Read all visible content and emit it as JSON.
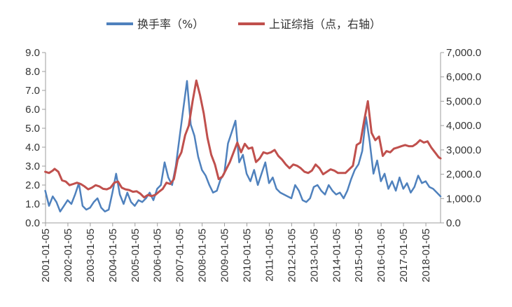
{
  "chart_data": {
    "type": "line",
    "title": "",
    "xlabel": "",
    "ylabel": "",
    "x_ticks": [
      "2001-01-05",
      "2002-01-05",
      "2003-01-05",
      "2004-01-05",
      "2005-01-05",
      "2006-01-05",
      "2007-01-05",
      "2008-01-05",
      "2009-01-05",
      "2010-01-05",
      "2011-01-05",
      "2012-01-05",
      "2013-01-05",
      "2014-01-05",
      "2015-01-05",
      "2016-01-05",
      "2017-01-05",
      "2018-01-05"
    ],
    "xlim": [
      "2001-01-05",
      "2018-09-01"
    ],
    "y_left": {
      "ylim": [
        0,
        9
      ],
      "ticks": [
        "0.0",
        "1.0",
        "2.0",
        "3.0",
        "4.0",
        "5.0",
        "6.0",
        "7.0",
        "8.0",
        "9.0"
      ]
    },
    "y_right": {
      "ylim": [
        0,
        7000
      ],
      "ticks": [
        "0.0",
        "1,000.0",
        "2,000.0",
        "3,000.0",
        "4,000.0",
        "5,000.0",
        "6,000.0",
        "7,000.0"
      ]
    },
    "legend_position": "top-center",
    "grid": false,
    "series": [
      {
        "name": "换手率（%）",
        "axis": "left",
        "color": "#4f81bd",
        "points": [
          [
            "2001-01",
            1.7
          ],
          [
            "2001-03",
            0.9
          ],
          [
            "2001-05",
            1.4
          ],
          [
            "2001-07",
            1.1
          ],
          [
            "2001-09",
            0.6
          ],
          [
            "2001-11",
            0.9
          ],
          [
            "2002-01",
            1.2
          ],
          [
            "2002-03",
            1.0
          ],
          [
            "2002-05",
            1.5
          ],
          [
            "2002-07",
            2.1
          ],
          [
            "2002-09",
            0.9
          ],
          [
            "2002-11",
            0.7
          ],
          [
            "2003-01",
            0.8
          ],
          [
            "2003-03",
            1.1
          ],
          [
            "2003-05",
            1.3
          ],
          [
            "2003-07",
            0.8
          ],
          [
            "2003-09",
            0.6
          ],
          [
            "2003-11",
            0.7
          ],
          [
            "2004-01",
            1.6
          ],
          [
            "2004-03",
            2.6
          ],
          [
            "2004-05",
            1.5
          ],
          [
            "2004-07",
            1.0
          ],
          [
            "2004-09",
            1.6
          ],
          [
            "2004-11",
            1.1
          ],
          [
            "2005-01",
            0.9
          ],
          [
            "2005-03",
            1.2
          ],
          [
            "2005-05",
            1.1
          ],
          [
            "2005-07",
            1.3
          ],
          [
            "2005-09",
            1.6
          ],
          [
            "2005-11",
            1.2
          ],
          [
            "2006-01",
            1.8
          ],
          [
            "2006-03",
            2.0
          ],
          [
            "2006-05",
            3.2
          ],
          [
            "2006-07",
            2.4
          ],
          [
            "2006-09",
            2.0
          ],
          [
            "2006-11",
            3.0
          ],
          [
            "2007-01",
            4.5
          ],
          [
            "2007-03",
            6.0
          ],
          [
            "2007-05",
            7.5
          ],
          [
            "2007-07",
            5.2
          ],
          [
            "2007-09",
            4.6
          ],
          [
            "2007-11",
            3.5
          ],
          [
            "2008-01",
            2.8
          ],
          [
            "2008-03",
            2.5
          ],
          [
            "2008-05",
            2.0
          ],
          [
            "2008-07",
            1.6
          ],
          [
            "2008-09",
            1.7
          ],
          [
            "2008-11",
            2.3
          ],
          [
            "2009-01",
            2.6
          ],
          [
            "2009-03",
            4.2
          ],
          [
            "2009-05",
            4.8
          ],
          [
            "2009-07",
            5.4
          ],
          [
            "2009-09",
            3.2
          ],
          [
            "2009-11",
            3.6
          ],
          [
            "2010-01",
            2.6
          ],
          [
            "2010-03",
            2.2
          ],
          [
            "2010-05",
            2.8
          ],
          [
            "2010-07",
            2.0
          ],
          [
            "2010-09",
            2.6
          ],
          [
            "2010-11",
            3.2
          ],
          [
            "2011-01",
            2.1
          ],
          [
            "2011-03",
            2.4
          ],
          [
            "2011-05",
            1.8
          ],
          [
            "2011-07",
            1.6
          ],
          [
            "2011-09",
            1.5
          ],
          [
            "2011-11",
            1.4
          ],
          [
            "2012-01",
            1.3
          ],
          [
            "2012-03",
            2.0
          ],
          [
            "2012-05",
            1.7
          ],
          [
            "2012-07",
            1.2
          ],
          [
            "2012-09",
            1.1
          ],
          [
            "2012-11",
            1.3
          ],
          [
            "2013-01",
            1.9
          ],
          [
            "2013-03",
            2.0
          ],
          [
            "2013-05",
            1.7
          ],
          [
            "2013-07",
            1.5
          ],
          [
            "2013-09",
            2.0
          ],
          [
            "2013-11",
            1.7
          ],
          [
            "2014-01",
            1.5
          ],
          [
            "2014-03",
            1.6
          ],
          [
            "2014-05",
            1.3
          ],
          [
            "2014-07",
            1.7
          ],
          [
            "2014-09",
            2.3
          ],
          [
            "2014-11",
            2.8
          ],
          [
            "2015-01",
            3.1
          ],
          [
            "2015-03",
            3.8
          ],
          [
            "2015-05",
            5.6
          ],
          [
            "2015-07",
            4.3
          ],
          [
            "2015-09",
            2.6
          ],
          [
            "2015-11",
            3.3
          ],
          [
            "2016-01",
            2.2
          ],
          [
            "2016-03",
            2.6
          ],
          [
            "2016-05",
            1.8
          ],
          [
            "2016-07",
            2.2
          ],
          [
            "2016-09",
            1.7
          ],
          [
            "2016-11",
            2.4
          ],
          [
            "2017-01",
            1.8
          ],
          [
            "2017-03",
            2.1
          ],
          [
            "2017-05",
            1.6
          ],
          [
            "2017-07",
            1.9
          ],
          [
            "2017-09",
            2.5
          ],
          [
            "2017-11",
            2.1
          ],
          [
            "2018-01",
            2.2
          ],
          [
            "2018-03",
            1.9
          ],
          [
            "2018-05",
            1.8
          ],
          [
            "2018-07",
            1.6
          ],
          [
            "2018-09",
            1.4
          ]
        ]
      },
      {
        "name": "上证综指（点，右轴）",
        "axis": "right",
        "color": "#c0504d",
        "points": [
          [
            "2001-01",
            2100
          ],
          [
            "2001-03",
            2050
          ],
          [
            "2001-05",
            2150
          ],
          [
            "2001-06",
            2220
          ],
          [
            "2001-08",
            2100
          ],
          [
            "2001-10",
            1750
          ],
          [
            "2001-12",
            1700
          ],
          [
            "2002-02",
            1550
          ],
          [
            "2002-04",
            1600
          ],
          [
            "2002-06",
            1650
          ],
          [
            "2002-08",
            1600
          ],
          [
            "2002-10",
            1500
          ],
          [
            "2002-12",
            1380
          ],
          [
            "2003-02",
            1450
          ],
          [
            "2003-04",
            1550
          ],
          [
            "2003-06",
            1500
          ],
          [
            "2003-08",
            1400
          ],
          [
            "2003-10",
            1380
          ],
          [
            "2003-12",
            1450
          ],
          [
            "2004-02",
            1650
          ],
          [
            "2004-04",
            1700
          ],
          [
            "2004-06",
            1450
          ],
          [
            "2004-08",
            1380
          ],
          [
            "2004-10",
            1350
          ],
          [
            "2004-12",
            1280
          ],
          [
            "2005-02",
            1300
          ],
          [
            "2005-04",
            1200
          ],
          [
            "2005-06",
            1050
          ],
          [
            "2005-08",
            1150
          ],
          [
            "2005-10",
            1100
          ],
          [
            "2005-12",
            1150
          ],
          [
            "2006-02",
            1280
          ],
          [
            "2006-04",
            1400
          ],
          [
            "2006-06",
            1650
          ],
          [
            "2006-08",
            1600
          ],
          [
            "2006-10",
            1800
          ],
          [
            "2006-12",
            2600
          ],
          [
            "2007-02",
            2900
          ],
          [
            "2007-04",
            3600
          ],
          [
            "2007-06",
            4000
          ],
          [
            "2007-08",
            5000
          ],
          [
            "2007-10",
            5850
          ],
          [
            "2007-12",
            5250
          ],
          [
            "2008-02",
            4500
          ],
          [
            "2008-04",
            3500
          ],
          [
            "2008-06",
            2800
          ],
          [
            "2008-08",
            2400
          ],
          [
            "2008-10",
            1800
          ],
          [
            "2008-12",
            1900
          ],
          [
            "2009-02",
            2200
          ],
          [
            "2009-04",
            2500
          ],
          [
            "2009-06",
            2900
          ],
          [
            "2009-08",
            3300
          ],
          [
            "2009-10",
            2900
          ],
          [
            "2009-12",
            3250
          ],
          [
            "2010-02",
            3050
          ],
          [
            "2010-04",
            3100
          ],
          [
            "2010-06",
            2500
          ],
          [
            "2010-08",
            2650
          ],
          [
            "2010-10",
            2900
          ],
          [
            "2010-12",
            2850
          ],
          [
            "2011-02",
            2900
          ],
          [
            "2011-04",
            3000
          ],
          [
            "2011-06",
            2750
          ],
          [
            "2011-08",
            2600
          ],
          [
            "2011-10",
            2400
          ],
          [
            "2011-12",
            2250
          ],
          [
            "2012-02",
            2400
          ],
          [
            "2012-04",
            2350
          ],
          [
            "2012-06",
            2250
          ],
          [
            "2012-08",
            2100
          ],
          [
            "2012-10",
            2050
          ],
          [
            "2012-12",
            2150
          ],
          [
            "2013-02",
            2400
          ],
          [
            "2013-04",
            2250
          ],
          [
            "2013-06",
            2000
          ],
          [
            "2013-08",
            2100
          ],
          [
            "2013-10",
            2200
          ],
          [
            "2013-12",
            2150
          ],
          [
            "2014-02",
            2050
          ],
          [
            "2014-04",
            2050
          ],
          [
            "2014-06",
            2050
          ],
          [
            "2014-08",
            2200
          ],
          [
            "2014-10",
            2350
          ],
          [
            "2014-12",
            3200
          ],
          [
            "2015-02",
            3300
          ],
          [
            "2015-04",
            4200
          ],
          [
            "2015-06",
            5000
          ],
          [
            "2015-08",
            3700
          ],
          [
            "2015-10",
            3400
          ],
          [
            "2015-12",
            3550
          ],
          [
            "2016-02",
            2750
          ],
          [
            "2016-04",
            2950
          ],
          [
            "2016-06",
            2900
          ],
          [
            "2016-08",
            3050
          ],
          [
            "2016-10",
            3100
          ],
          [
            "2016-12",
            3150
          ],
          [
            "2017-02",
            3200
          ],
          [
            "2017-04",
            3150
          ],
          [
            "2017-06",
            3150
          ],
          [
            "2017-08",
            3250
          ],
          [
            "2017-10",
            3400
          ],
          [
            "2017-12",
            3300
          ],
          [
            "2018-02",
            3350
          ],
          [
            "2018-04",
            3100
          ],
          [
            "2018-06",
            2900
          ],
          [
            "2018-08",
            2700
          ],
          [
            "2018-09",
            2650
          ]
        ]
      }
    ]
  }
}
